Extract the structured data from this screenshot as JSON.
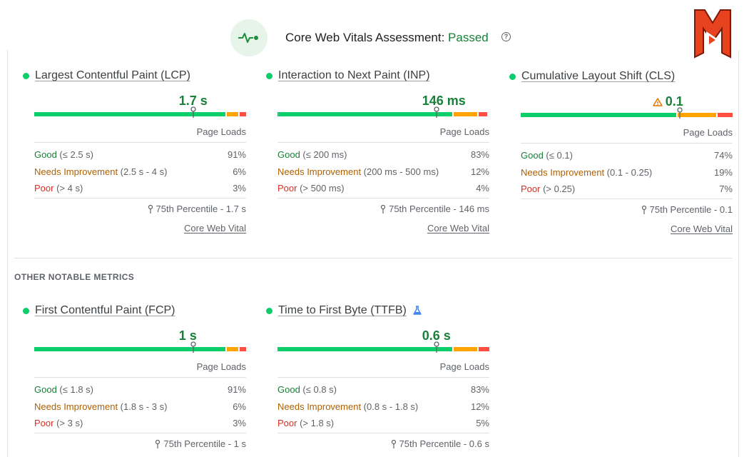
{
  "header": {
    "title": "Core Web Vitals Assessment: ",
    "status": "Passed",
    "help": "?"
  },
  "colors": {
    "good": "#0cce6b",
    "needs_improvement": "#ffa400",
    "poor": "#ff4e42",
    "good_text": "#188038"
  },
  "section_other": "OTHER NOTABLE METRICS",
  "metrics": [
    {
      "name": "Largest Contentful Paint (LCP)",
      "value": "1.7 s",
      "page_loads_label": "Page Loads",
      "rows": [
        {
          "label": "Good",
          "range": " (≤ 2.5 s)",
          "pct": "91%"
        },
        {
          "label": "Needs Improvement",
          "range": " (2.5 s - 4 s)",
          "pct": "6%"
        },
        {
          "label": "Poor",
          "range": " (> 4 s)",
          "pct": "3%"
        }
      ],
      "percentile": "75th Percentile - 1.7 s",
      "link": "Core Web Vital",
      "distribution": [
        0.91,
        0.06,
        0.03
      ],
      "marker_fraction": 0.75
    },
    {
      "name": "Interaction to Next Paint (INP)",
      "value": "146 ms",
      "page_loads_label": "Page Loads",
      "rows": [
        {
          "label": "Good",
          "range": " (≤ 200 ms)",
          "pct": "83%"
        },
        {
          "label": "Needs Improvement",
          "range": " (200 ms - 500 ms)",
          "pct": "12%"
        },
        {
          "label": "Poor",
          "range": " (> 500 ms)",
          "pct": "4%"
        }
      ],
      "percentile": "75th Percentile - 146 ms",
      "link": "Core Web Vital",
      "distribution": [
        0.83,
        0.12,
        0.04
      ],
      "marker_fraction": 0.75
    },
    {
      "name": "Cumulative Layout Shift (CLS)",
      "value": "0.1",
      "value_warning": true,
      "page_loads_label": "Page Loads",
      "rows": [
        {
          "label": "Good",
          "range": " (≤ 0.1)",
          "pct": "74%"
        },
        {
          "label": "Needs Improvement",
          "range": " (0.1 - 0.25)",
          "pct": "19%"
        },
        {
          "label": "Poor",
          "range": " (> 0.25)",
          "pct": "7%"
        }
      ],
      "percentile": "75th Percentile - 0.1",
      "link": "Core Web Vital",
      "distribution": [
        0.74,
        0.19,
        0.07
      ],
      "marker_fraction": 0.75
    },
    {
      "name": "First Contentful Paint (FCP)",
      "value": "1 s",
      "page_loads_label": "Page Loads",
      "rows": [
        {
          "label": "Good",
          "range": " (≤ 1.8 s)",
          "pct": "91%"
        },
        {
          "label": "Needs Improvement",
          "range": " (1.8 s - 3 s)",
          "pct": "6%"
        },
        {
          "label": "Poor",
          "range": " (> 3 s)",
          "pct": "3%"
        }
      ],
      "percentile": "75th Percentile - 1 s",
      "distribution": [
        0.91,
        0.06,
        0.03
      ],
      "marker_fraction": 0.75
    },
    {
      "name": "Time to First Byte (TTFB)",
      "value": "0.6 s",
      "experimental": true,
      "page_loads_label": "Page Loads",
      "rows": [
        {
          "label": "Good",
          "range": " (≤ 0.8 s)",
          "pct": "83%"
        },
        {
          "label": "Needs Improvement",
          "range": " (0.8 s - 1.8 s)",
          "pct": "12%"
        },
        {
          "label": "Poor",
          "range": " (> 1.8 s)",
          "pct": "5%"
        }
      ],
      "percentile": "75th Percentile - 0.6 s",
      "distribution": [
        0.83,
        0.12,
        0.05
      ],
      "marker_fraction": 0.75
    }
  ]
}
